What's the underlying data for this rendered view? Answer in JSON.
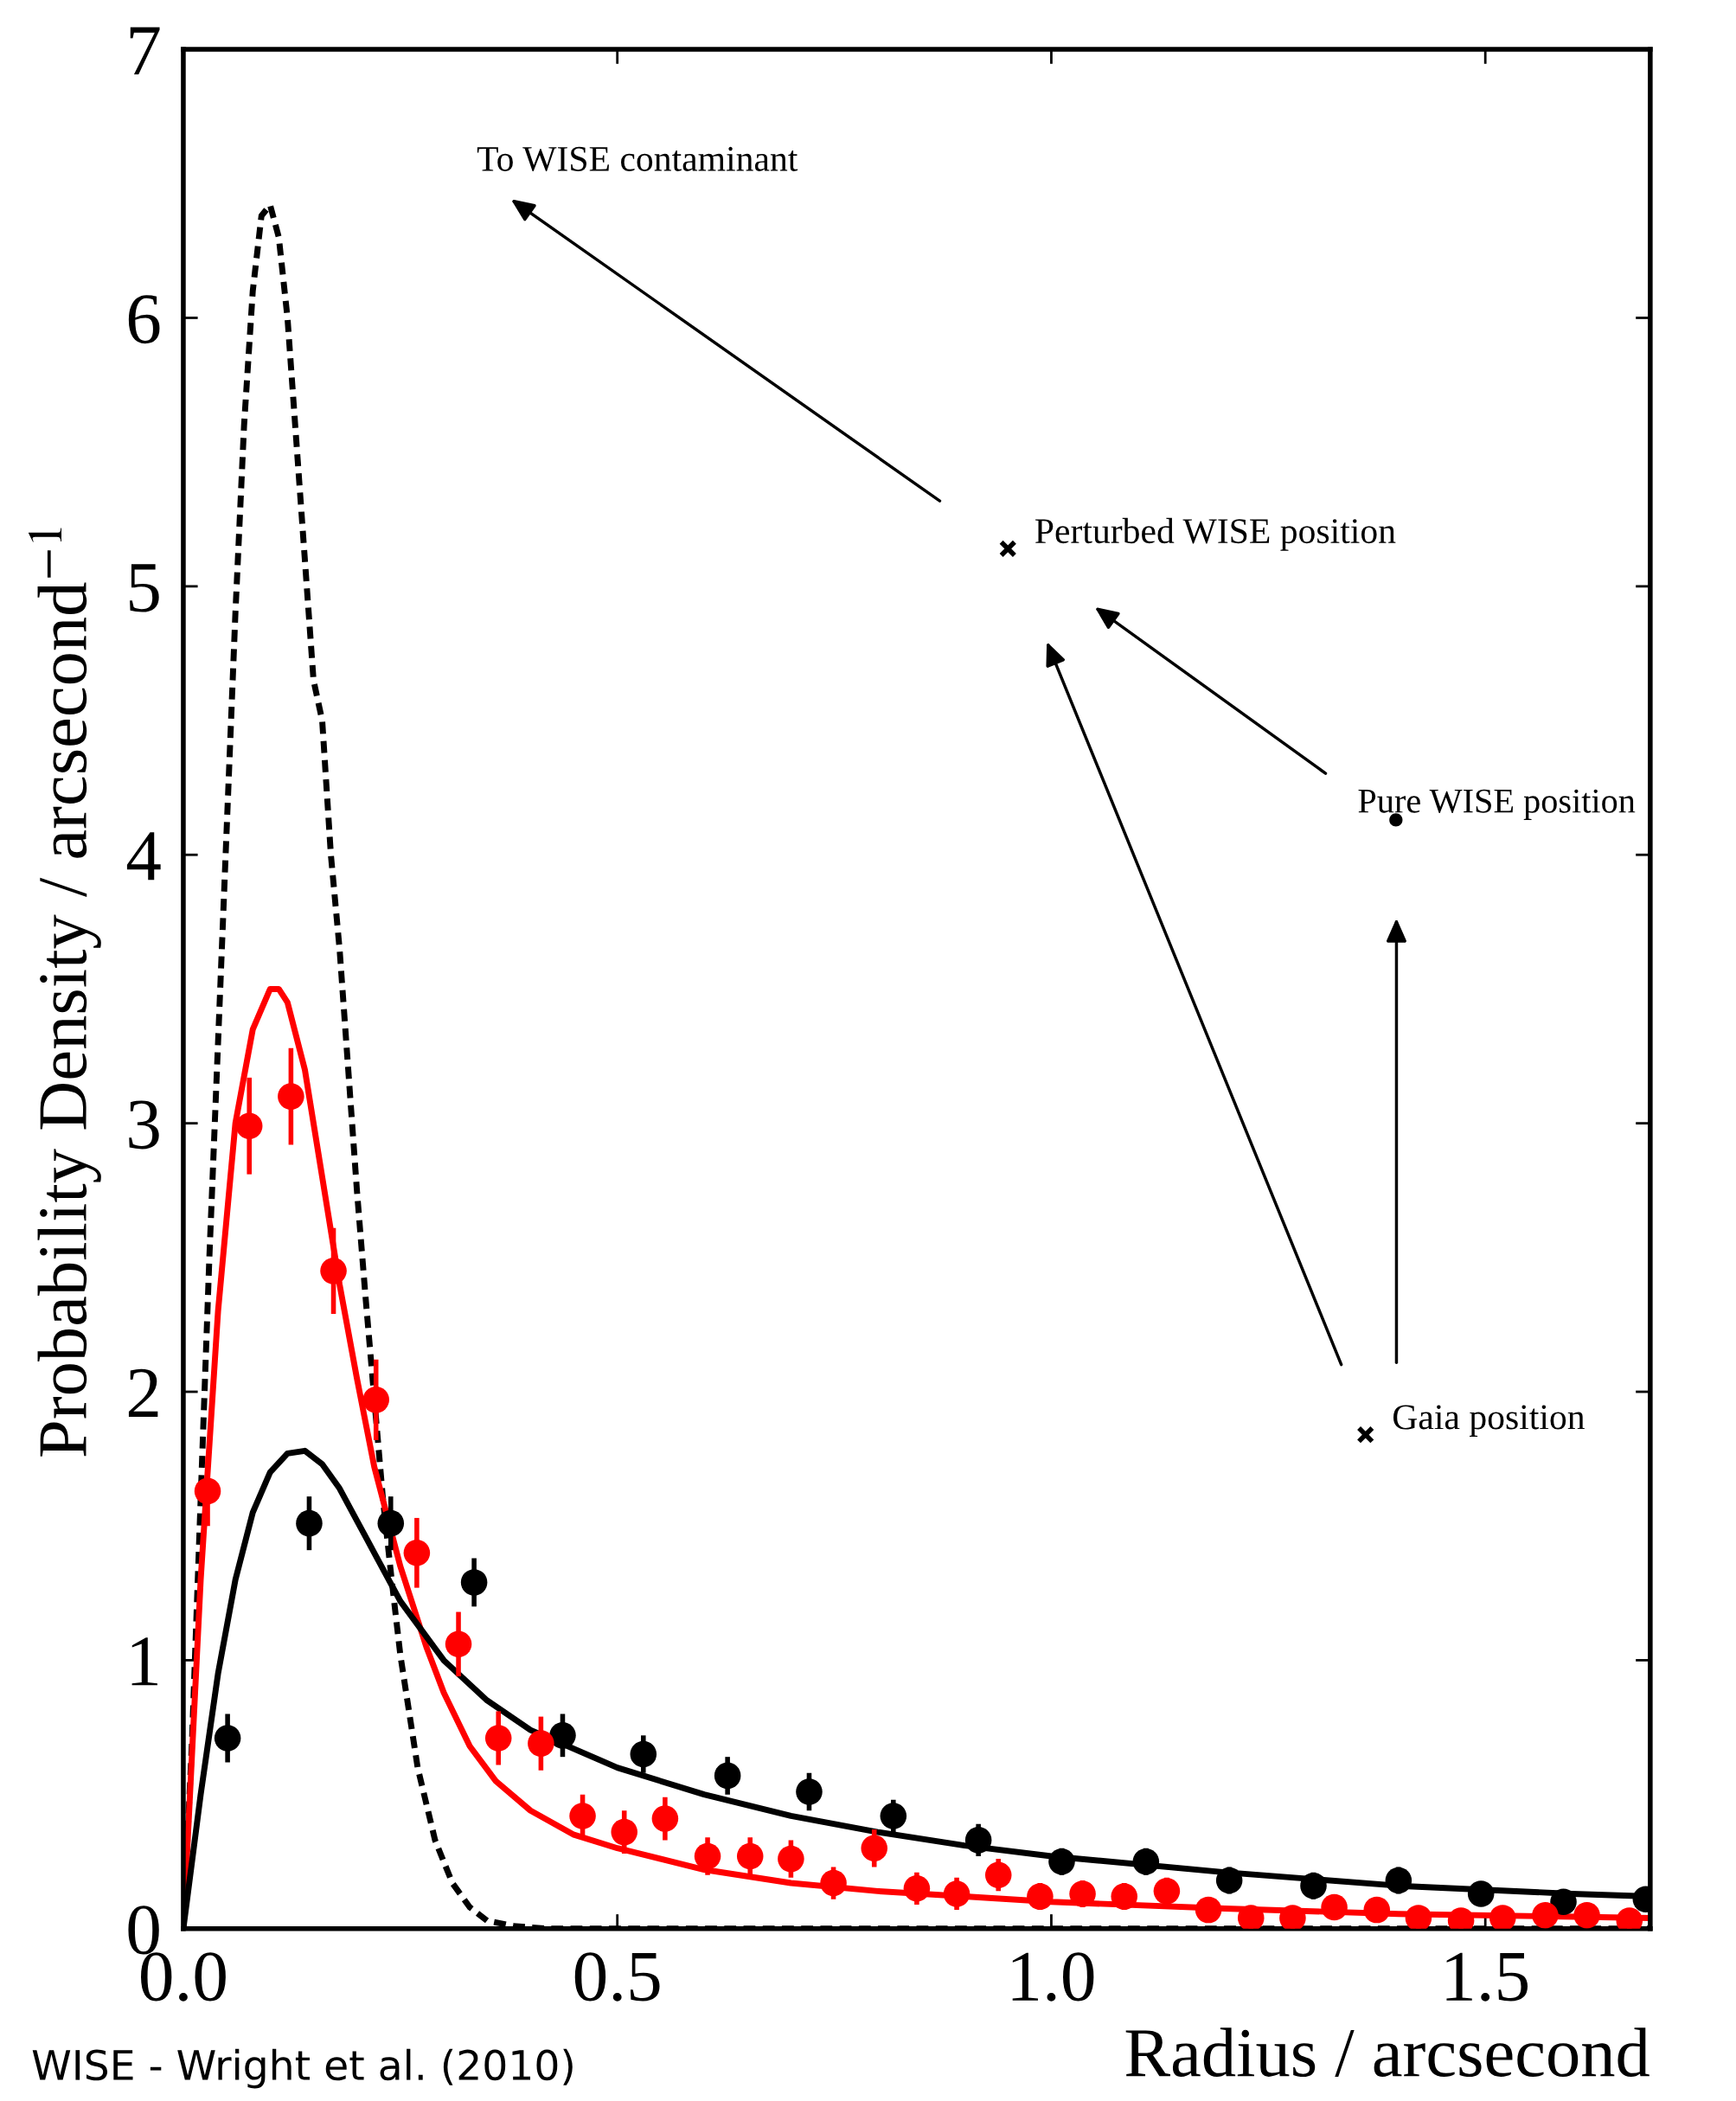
{
  "chart_data": {
    "type": "scatter",
    "xlabel": "Radius / arcsecond",
    "ylabel": "Probability Density / arcsecond$^{−1}$",
    "xlim": [
      0,
      1.69
    ],
    "ylim": [
      0,
      7
    ],
    "xticks": [
      {
        "value": 0,
        "label": "0.0"
      },
      {
        "value": 0.5,
        "label": "0.5"
      },
      {
        "value": 1.0,
        "label": "1.0"
      },
      {
        "value": 1.5,
        "label": "1.5"
      }
    ],
    "yticks": [
      0,
      1,
      2,
      3,
      4,
      5,
      6,
      7
    ],
    "grid": false,
    "series": [
      {
        "type": "line",
        "line_style": "dashed",
        "color": "#000000",
        "x": [
          0,
          0.01,
          0.02,
          0.03,
          0.04,
          0.05,
          0.06,
          0.07,
          0.08,
          0.09,
          0.1,
          0.11,
          0.12,
          0.13,
          0.14,
          0.15,
          0.16,
          0.17,
          0.18,
          0.19,
          0.2,
          0.21,
          0.23,
          0.24,
          0.25,
          0.27,
          0.29,
          0.31,
          0.33,
          0.35,
          0.38,
          0.42,
          1.69
        ],
        "values": [
          0,
          0.7,
          1.6,
          2.5,
          3.3,
          4.1,
          4.9,
          5.6,
          6.1,
          6.38,
          6.42,
          6.3,
          6.0,
          5.55,
          5.1,
          4.65,
          4.5,
          4.0,
          3.65,
          3.2,
          2.75,
          2.35,
          1.6,
          1.3,
          1.02,
          0.6,
          0.33,
          0.17,
          0.08,
          0.03,
          0.01,
          0,
          0
        ]
      },
      {
        "type": "line",
        "line_style": "solid",
        "color": "#ff0000",
        "x": [
          0,
          0.02,
          0.04,
          0.06,
          0.08,
          0.1,
          0.11,
          0.12,
          0.14,
          0.16,
          0.18,
          0.2,
          0.22,
          0.25,
          0.28,
          0.3,
          0.33,
          0.36,
          0.4,
          0.45,
          0.5,
          0.6,
          0.7,
          0.8,
          0.9,
          1.0,
          1.2,
          1.4,
          1.69
        ],
        "values": [
          0,
          1.3,
          2.3,
          3.0,
          3.35,
          3.5,
          3.5,
          3.45,
          3.2,
          2.8,
          2.4,
          2.05,
          1.72,
          1.35,
          1.05,
          0.88,
          0.68,
          0.55,
          0.44,
          0.35,
          0.3,
          0.22,
          0.17,
          0.14,
          0.12,
          0.1,
          0.075,
          0.055,
          0.04
        ]
      },
      {
        "type": "line",
        "line_style": "solid",
        "color": "#000000",
        "x": [
          0,
          0.02,
          0.04,
          0.06,
          0.08,
          0.1,
          0.12,
          0.14,
          0.16,
          0.18,
          0.2,
          0.22,
          0.25,
          0.3,
          0.35,
          0.4,
          0.5,
          0.6,
          0.7,
          0.8,
          0.9,
          1.0,
          1.2,
          1.4,
          1.6,
          1.69
        ],
        "values": [
          0,
          0.5,
          0.95,
          1.3,
          1.55,
          1.7,
          1.77,
          1.78,
          1.73,
          1.64,
          1.52,
          1.4,
          1.22,
          1.0,
          0.85,
          0.74,
          0.6,
          0.5,
          0.42,
          0.36,
          0.31,
          0.27,
          0.21,
          0.16,
          0.13,
          0.12
        ]
      },
      {
        "marker": "circle",
        "color": "#000000",
        "x": [
          0.051,
          0.145,
          0.239,
          0.335,
          0.437,
          0.53,
          0.627,
          0.721,
          0.818,
          0.916,
          1.012,
          1.109,
          1.205,
          1.302,
          1.4,
          1.495,
          1.59,
          1.685
        ],
        "values": [
          0.71,
          1.51,
          1.51,
          1.29,
          0.72,
          0.65,
          0.57,
          0.51,
          0.42,
          0.33,
          0.25,
          0.25,
          0.18,
          0.16,
          0.18,
          0.13,
          0.1,
          0.11
        ],
        "errors": [
          0.09,
          0.1,
          0.1,
          0.09,
          0.08,
          0.07,
          0.07,
          0.07,
          0.06,
          0.06,
          0.05,
          0.05,
          0.05,
          0.05,
          0.05,
          0.04,
          0.04,
          0.04
        ]
      },
      {
        "marker": "circle",
        "color": "#ff0000",
        "x": [
          0.028,
          0.076,
          0.124,
          0.173,
          0.222,
          0.269,
          0.317,
          0.363,
          0.412,
          0.46,
          0.508,
          0.555,
          0.604,
          0.653,
          0.7,
          0.749,
          0.796,
          0.845,
          0.891,
          0.939,
          0.987,
          1.036,
          1.084,
          1.133,
          1.181,
          1.23,
          1.278,
          1.326,
          1.375,
          1.423,
          1.472,
          1.52,
          1.569,
          1.617,
          1.666
        ],
        "values": [
          1.63,
          2.99,
          3.1,
          2.45,
          1.97,
          1.4,
          1.06,
          0.71,
          0.69,
          0.42,
          0.36,
          0.41,
          0.27,
          0.27,
          0.26,
          0.17,
          0.3,
          0.15,
          0.13,
          0.2,
          0.12,
          0.13,
          0.12,
          0.14,
          0.07,
          0.04,
          0.04,
          0.08,
          0.07,
          0.04,
          0.03,
          0.04,
          0.05,
          0.05,
          0.03
        ],
        "errors": [
          0.13,
          0.18,
          0.18,
          0.16,
          0.15,
          0.13,
          0.12,
          0.1,
          0.1,
          0.08,
          0.08,
          0.08,
          0.07,
          0.07,
          0.07,
          0.06,
          0.07,
          0.06,
          0.06,
          0.06,
          0.05,
          0.05,
          0.05,
          0.05,
          0.04,
          0.04,
          0.04,
          0.04,
          0.04,
          0.04,
          0.03,
          0.03,
          0.03,
          0.03,
          0.03
        ]
      },
      {
        "name": "Perturbed WISE position",
        "marker": "cross",
        "color": "#000000",
        "x": [
          0.95
        ],
        "values": [
          5.14
        ]
      },
      {
        "name": "Pure WISE position",
        "marker": "dot",
        "color": "#000000",
        "x": [
          1.397
        ],
        "values": [
          4.13
        ]
      },
      {
        "name": "Gaia position",
        "marker": "cross",
        "color": "#000000",
        "x": [
          1.362
        ],
        "values": [
          1.84
        ]
      }
    ],
    "annotations": [
      "To WISE contaminant",
      "WISE - Wright et al. (2010)"
    ]
  }
}
